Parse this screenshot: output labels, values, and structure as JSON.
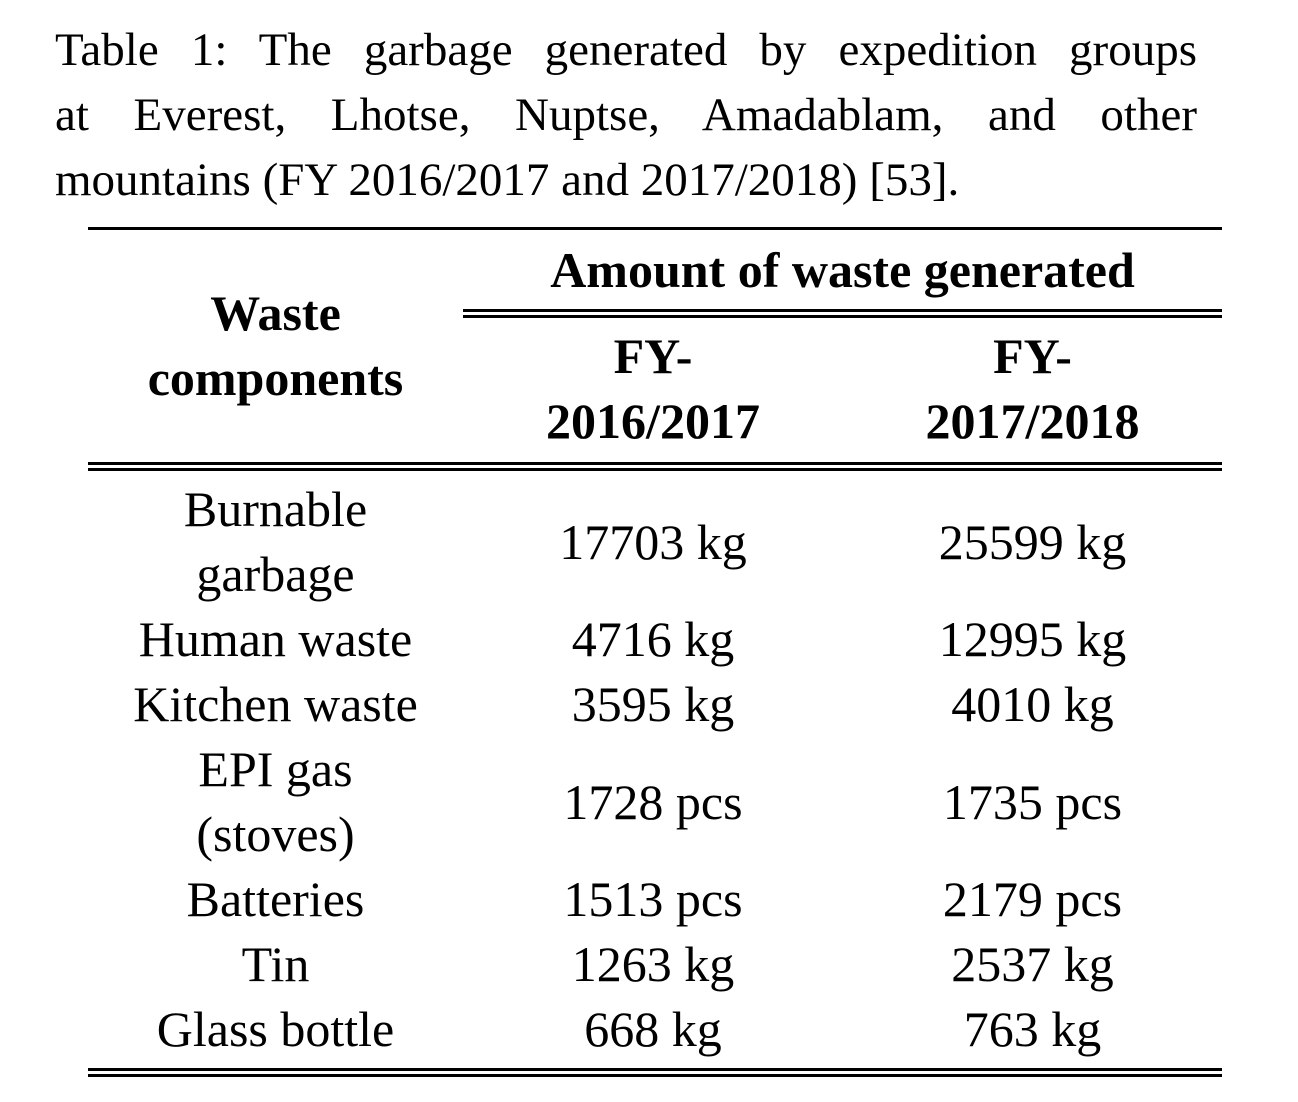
{
  "caption": {
    "lines": [
      "Table 1: The garbage generated by expedition groups",
      "at Everest, Lhotse, Nuptse, Amadablam, and other",
      "mountains (FY 2016/2017 and 2017/2018) [53]."
    ]
  },
  "table": {
    "headers": {
      "component": "Waste\ncomponents",
      "group": "Amount of waste generated",
      "fy1": "FY-\n2016/2017",
      "fy2": "FY-\n2017/2018"
    },
    "rows": [
      {
        "component": "Burnable\ngarbage",
        "fy1": "17703 kg",
        "fy2": "25599 kg"
      },
      {
        "component": "Human waste",
        "fy1": "4716 kg",
        "fy2": "12995 kg"
      },
      {
        "component": "Kitchen waste",
        "fy1": "3595 kg",
        "fy2": "4010 kg"
      },
      {
        "component": "EPI gas\n(stoves)",
        "fy1": "1728 pcs",
        "fy2": "1735 pcs"
      },
      {
        "component": "Batteries",
        "fy1": "1513 pcs",
        "fy2": "2179 pcs"
      },
      {
        "component": "Tin",
        "fy1": "1263 kg",
        "fy2": "2537 kg"
      },
      {
        "component": "Glass bottle",
        "fy1": "668 kg",
        "fy2": "763 kg"
      }
    ]
  },
  "chart_data": {
    "type": "table",
    "title": "Table 1: The garbage generated by expedition groups at Everest, Lhotse, Nuptse, Amadablam, and other mountains (FY 2016/2017 and 2017/2018) [53].",
    "columns": [
      "Waste components",
      "FY-2016/2017",
      "FY-2017/2018"
    ],
    "rows": [
      [
        "Burnable garbage",
        "17703 kg",
        "25599 kg"
      ],
      [
        "Human waste",
        "4716 kg",
        "12995 kg"
      ],
      [
        "Kitchen waste",
        "3595 kg",
        "4010 kg"
      ],
      [
        "EPI gas (stoves)",
        "1728 pcs",
        "1735 pcs"
      ],
      [
        "Batteries",
        "1513 pcs",
        "2179 pcs"
      ],
      [
        "Tin",
        "1263 kg",
        "2537 kg"
      ],
      [
        "Glass bottle",
        "668 kg",
        "763 kg"
      ]
    ],
    "values_fy_2016_2017": [
      17703,
      4716,
      3595,
      1728,
      1513,
      1263,
      668
    ],
    "values_fy_2017_2018": [
      25599,
      12995,
      4010,
      1735,
      2179,
      2537,
      763
    ],
    "units": [
      "kg",
      "kg",
      "kg",
      "pcs",
      "pcs",
      "kg",
      "kg"
    ]
  }
}
